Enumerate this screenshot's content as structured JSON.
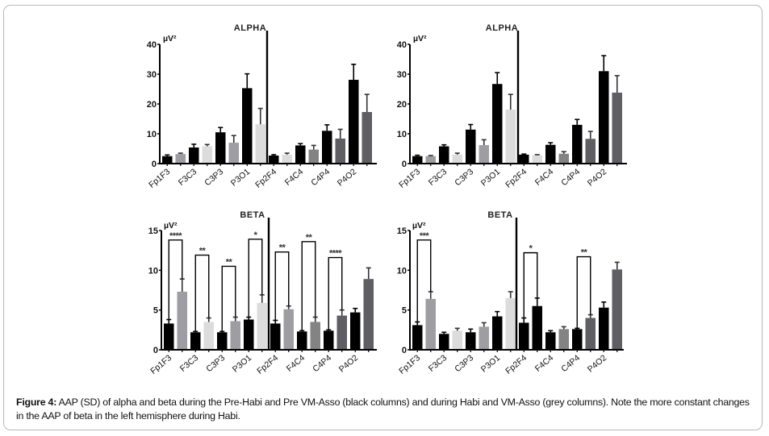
{
  "caption": {
    "label": "Figure 4:",
    "text": "AAP (SD) of alpha and beta during the Pre-Habi and Pre VM-Asso (black columns) and during Habi and VM-Asso (grey columns). Note the more constant changes in the AAP of beta in the left hemisphere during Habi."
  },
  "colors": {
    "black": "#000000",
    "grey_mid": "#9d9da2",
    "grey_light": "#dcdcdc",
    "grey_medium": "#838383",
    "grey_dark": "#5e5e63"
  },
  "chart_data": [
    {
      "id": "alpha-left",
      "type": "bar",
      "title": "ALPHA",
      "ylabel": "µV²",
      "ylim": [
        0,
        40
      ],
      "yticks": [
        0,
        10,
        20,
        30,
        40
      ],
      "categories": [
        "Fp1F3",
        "F3C3",
        "C3P3",
        "P3O1",
        "Fp2F4",
        "F4C4",
        "C4P4",
        "P4O2"
      ],
      "bars": [
        {
          "value": 2.5,
          "sd": 0.4,
          "color": "black"
        },
        {
          "value": 3.2,
          "sd": 0.3,
          "color": "grey_mid"
        },
        {
          "value": 5.4,
          "sd": 1.1,
          "color": "black"
        },
        {
          "value": 5.8,
          "sd": 0.6,
          "color": "grey_light"
        },
        {
          "value": 10.5,
          "sd": 1.6,
          "color": "black"
        },
        {
          "value": 7.0,
          "sd": 2.4,
          "color": "grey_mid"
        },
        {
          "value": 25.3,
          "sd": 4.8,
          "color": "black"
        },
        {
          "value": 13.2,
          "sd": 5.3,
          "color": "grey_light"
        },
        {
          "value": 2.7,
          "sd": 0.3,
          "color": "black"
        },
        {
          "value": 3.0,
          "sd": 0.5,
          "color": "grey_light"
        },
        {
          "value": 6.1,
          "sd": 0.6,
          "color": "black"
        },
        {
          "value": 4.7,
          "sd": 1.4,
          "color": "grey_medium"
        },
        {
          "value": 11.0,
          "sd": 2.0,
          "color": "black"
        },
        {
          "value": 8.4,
          "sd": 3.1,
          "color": "grey_dark"
        },
        {
          "value": 28.1,
          "sd": 5.2,
          "color": "black"
        },
        {
          "value": 17.3,
          "sd": 5.9,
          "color": "grey_dark"
        }
      ],
      "significance": []
    },
    {
      "id": "alpha-right",
      "type": "bar",
      "title": "ALPHA",
      "ylabel": "µV²",
      "ylim": [
        0,
        40
      ],
      "yticks": [
        0,
        10,
        20,
        30,
        40
      ],
      "categories": [
        "Fp1F3",
        "F3C3",
        "C3P3",
        "P3O1",
        "Fp2F4",
        "F4C4",
        "C4P4",
        "P4O2"
      ],
      "bars": [
        {
          "value": 2.5,
          "sd": 0.3,
          "color": "black"
        },
        {
          "value": 2.5,
          "sd": 0.2,
          "color": "grey_mid"
        },
        {
          "value": 5.8,
          "sd": 0.5,
          "color": "black"
        },
        {
          "value": 3.0,
          "sd": 0.5,
          "color": "grey_light"
        },
        {
          "value": 11.4,
          "sd": 1.7,
          "color": "black"
        },
        {
          "value": 6.2,
          "sd": 1.8,
          "color": "grey_mid"
        },
        {
          "value": 26.7,
          "sd": 3.8,
          "color": "black"
        },
        {
          "value": 18.1,
          "sd": 5.1,
          "color": "grey_light"
        },
        {
          "value": 3.0,
          "sd": 0.2,
          "color": "black"
        },
        {
          "value": 2.8,
          "sd": 0.2,
          "color": "grey_light"
        },
        {
          "value": 6.3,
          "sd": 0.7,
          "color": "black"
        },
        {
          "value": 3.3,
          "sd": 0.7,
          "color": "grey_medium"
        },
        {
          "value": 13.0,
          "sd": 1.8,
          "color": "black"
        },
        {
          "value": 8.3,
          "sd": 2.5,
          "color": "grey_dark"
        },
        {
          "value": 31.0,
          "sd": 5.2,
          "color": "black"
        },
        {
          "value": 23.8,
          "sd": 5.7,
          "color": "grey_dark"
        }
      ],
      "significance": []
    },
    {
      "id": "beta-left",
      "type": "bar",
      "title": "BETA",
      "ylabel": "µV²",
      "ylim": [
        0,
        15
      ],
      "yticks": [
        0,
        5,
        10,
        15
      ],
      "categories": [
        "Fp1F3",
        "F3C3",
        "C3P3",
        "P3O1",
        "Fp2F4",
        "F4C4",
        "C4P4",
        "P4O2"
      ],
      "bars": [
        {
          "value": 3.3,
          "sd": 0.5,
          "color": "black"
        },
        {
          "value": 7.3,
          "sd": 1.6,
          "color": "grey_mid"
        },
        {
          "value": 2.2,
          "sd": 0.1,
          "color": "black"
        },
        {
          "value": 3.5,
          "sd": 0.5,
          "color": "grey_light"
        },
        {
          "value": 2.2,
          "sd": 0.1,
          "color": "black"
        },
        {
          "value": 3.6,
          "sd": 0.5,
          "color": "grey_mid"
        },
        {
          "value": 3.8,
          "sd": 0.3,
          "color": "black"
        },
        {
          "value": 5.9,
          "sd": 1.0,
          "color": "grey_light"
        },
        {
          "value": 3.3,
          "sd": 0.4,
          "color": "black"
        },
        {
          "value": 5.1,
          "sd": 0.4,
          "color": "grey_mid"
        },
        {
          "value": 2.3,
          "sd": 0.1,
          "color": "black"
        },
        {
          "value": 3.5,
          "sd": 0.6,
          "color": "grey_medium"
        },
        {
          "value": 2.4,
          "sd": 0.1,
          "color": "black"
        },
        {
          "value": 4.3,
          "sd": 0.7,
          "color": "grey_dark"
        },
        {
          "value": 4.7,
          "sd": 0.5,
          "color": "black"
        },
        {
          "value": 8.9,
          "sd": 1.4,
          "color": "grey_dark"
        }
      ],
      "significance": [
        {
          "pair": "Fp1F3",
          "label": "****",
          "top": 13.8
        },
        {
          "pair": "F3C3",
          "label": "**",
          "top": 11.9
        },
        {
          "pair": "C3P3",
          "label": "**",
          "top": 10.5
        },
        {
          "pair": "P3O1",
          "label": "*",
          "top": 13.9
        },
        {
          "pair": "Fp2F4",
          "label": "**",
          "top": 12.3
        },
        {
          "pair": "F4C4",
          "label": "**",
          "top": 13.6
        },
        {
          "pair": "C4P4",
          "label": "****",
          "top": 11.6
        }
      ]
    },
    {
      "id": "beta-right",
      "type": "bar",
      "title": "BETA",
      "ylabel": "µV²",
      "ylim": [
        0,
        15
      ],
      "yticks": [
        0,
        5,
        10,
        15
      ],
      "categories": [
        "Fp1F3",
        "F3C3",
        "C3P3",
        "P3O1",
        "Fp2F4",
        "F4C4",
        "C4P4",
        "P4O2"
      ],
      "bars": [
        {
          "value": 3.1,
          "sd": 0.4,
          "color": "black"
        },
        {
          "value": 6.4,
          "sd": 0.9,
          "color": "grey_mid"
        },
        {
          "value": 2.0,
          "sd": 0.2,
          "color": "black"
        },
        {
          "value": 2.4,
          "sd": 0.3,
          "color": "grey_light"
        },
        {
          "value": 2.2,
          "sd": 0.4,
          "color": "black"
        },
        {
          "value": 2.9,
          "sd": 0.5,
          "color": "grey_mid"
        },
        {
          "value": 4.2,
          "sd": 0.6,
          "color": "black"
        },
        {
          "value": 6.5,
          "sd": 0.8,
          "color": "grey_light"
        },
        {
          "value": 3.4,
          "sd": 0.6,
          "color": "black"
        },
        {
          "value": 5.5,
          "sd": 1.0,
          "color": "black"
        },
        {
          "value": 2.2,
          "sd": 0.2,
          "color": "black"
        },
        {
          "value": 2.6,
          "sd": 0.3,
          "color": "grey_medium"
        },
        {
          "value": 2.6,
          "sd": 0.1,
          "color": "black"
        },
        {
          "value": 4.0,
          "sd": 0.4,
          "color": "grey_dark"
        },
        {
          "value": 5.3,
          "sd": 0.7,
          "color": "black"
        },
        {
          "value": 10.1,
          "sd": 0.9,
          "color": "grey_dark"
        }
      ],
      "significance": [
        {
          "pair": "Fp1F3",
          "label": "***",
          "top": 13.8
        },
        {
          "pair": "Fp2F4",
          "label": "*",
          "top": 12.2
        },
        {
          "pair": "C4P4",
          "label": "**",
          "top": 11.7
        }
      ]
    }
  ]
}
